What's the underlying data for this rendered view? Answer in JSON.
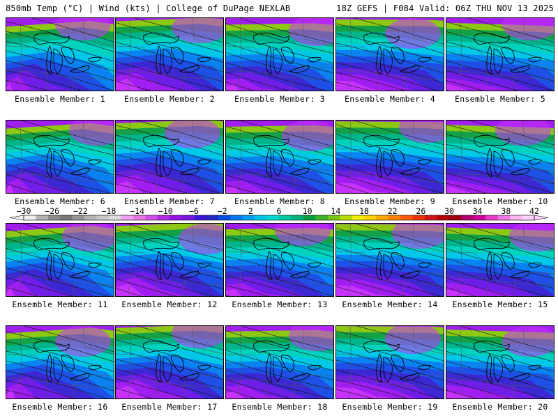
{
  "header": {
    "title_left": "850mb Temp (°C) | Wind (kts) | College of DuPage NEXLAB",
    "title_right": "18Z GEFS | F084 Valid: 06Z THU NOV 13 2025"
  },
  "members": [
    "Ensemble Member: 1",
    "Ensemble Member: 2",
    "Ensemble Member: 3",
    "Ensemble Member: 4",
    "Ensemble Member: 5",
    "Ensemble Member: 6",
    "Ensemble Member: 7",
    "Ensemble Member: 8",
    "Ensemble Member: 9",
    "Ensemble Member: 10",
    "Ensemble Member: 11",
    "Ensemble Member: 12",
    "Ensemble Member: 13",
    "Ensemble Member: 14",
    "Ensemble Member: 15",
    "Ensemble Member: 16",
    "Ensemble Member: 17",
    "Ensemble Member: 18",
    "Ensemble Member: 19",
    "Ensemble Member: 20"
  ],
  "colorbar": {
    "tick_labels": [
      "−30",
      "−26",
      "−22",
      "−18",
      "−14",
      "−10",
      "−6",
      "−2",
      "2",
      "6",
      "10",
      "14",
      "18",
      "22",
      "26",
      "30",
      "34",
      "38",
      "42"
    ],
    "colors": [
      "#f0f0f0",
      "#b4b4b4",
      "#8c8c8c",
      "#787878",
      "#969696",
      "#b4b4b4",
      "#c8c8c8",
      "#dcdcdc",
      "#f0a0f0",
      "#e678e6",
      "#d250e6",
      "#b428e6",
      "#9614e6",
      "#7814e6",
      "#3c14dc",
      "#2828c8",
      "#0050e6",
      "#0078f0",
      "#00a0f0",
      "#00c8e6",
      "#00dcd2",
      "#00c8a0",
      "#00b478",
      "#00a040",
      "#3cb428",
      "#78c814",
      "#b4dc00",
      "#f0f000",
      "#ffd200",
      "#ffaa00",
      "#ff8200",
      "#ff5a00",
      "#f03200",
      "#d21414",
      "#b40000",
      "#a00014",
      "#b4006e",
      "#d2009b",
      "#e63cc8",
      "#f078e6",
      "#fab4f0",
      "#ffd2ff"
    ]
  },
  "field_colors": {
    "purple_light": "#c832ff",
    "purple": "#a01ef0",
    "violet": "#6e1ee6",
    "indigo": "#3c28d2",
    "blue": "#1e50e6",
    "mid_blue": "#0a82f0",
    "cyan": "#00c8e6",
    "teal": "#00d2be",
    "sea_green": "#00b48c",
    "green": "#14a046",
    "yellow_green": "#8cc814"
  }
}
